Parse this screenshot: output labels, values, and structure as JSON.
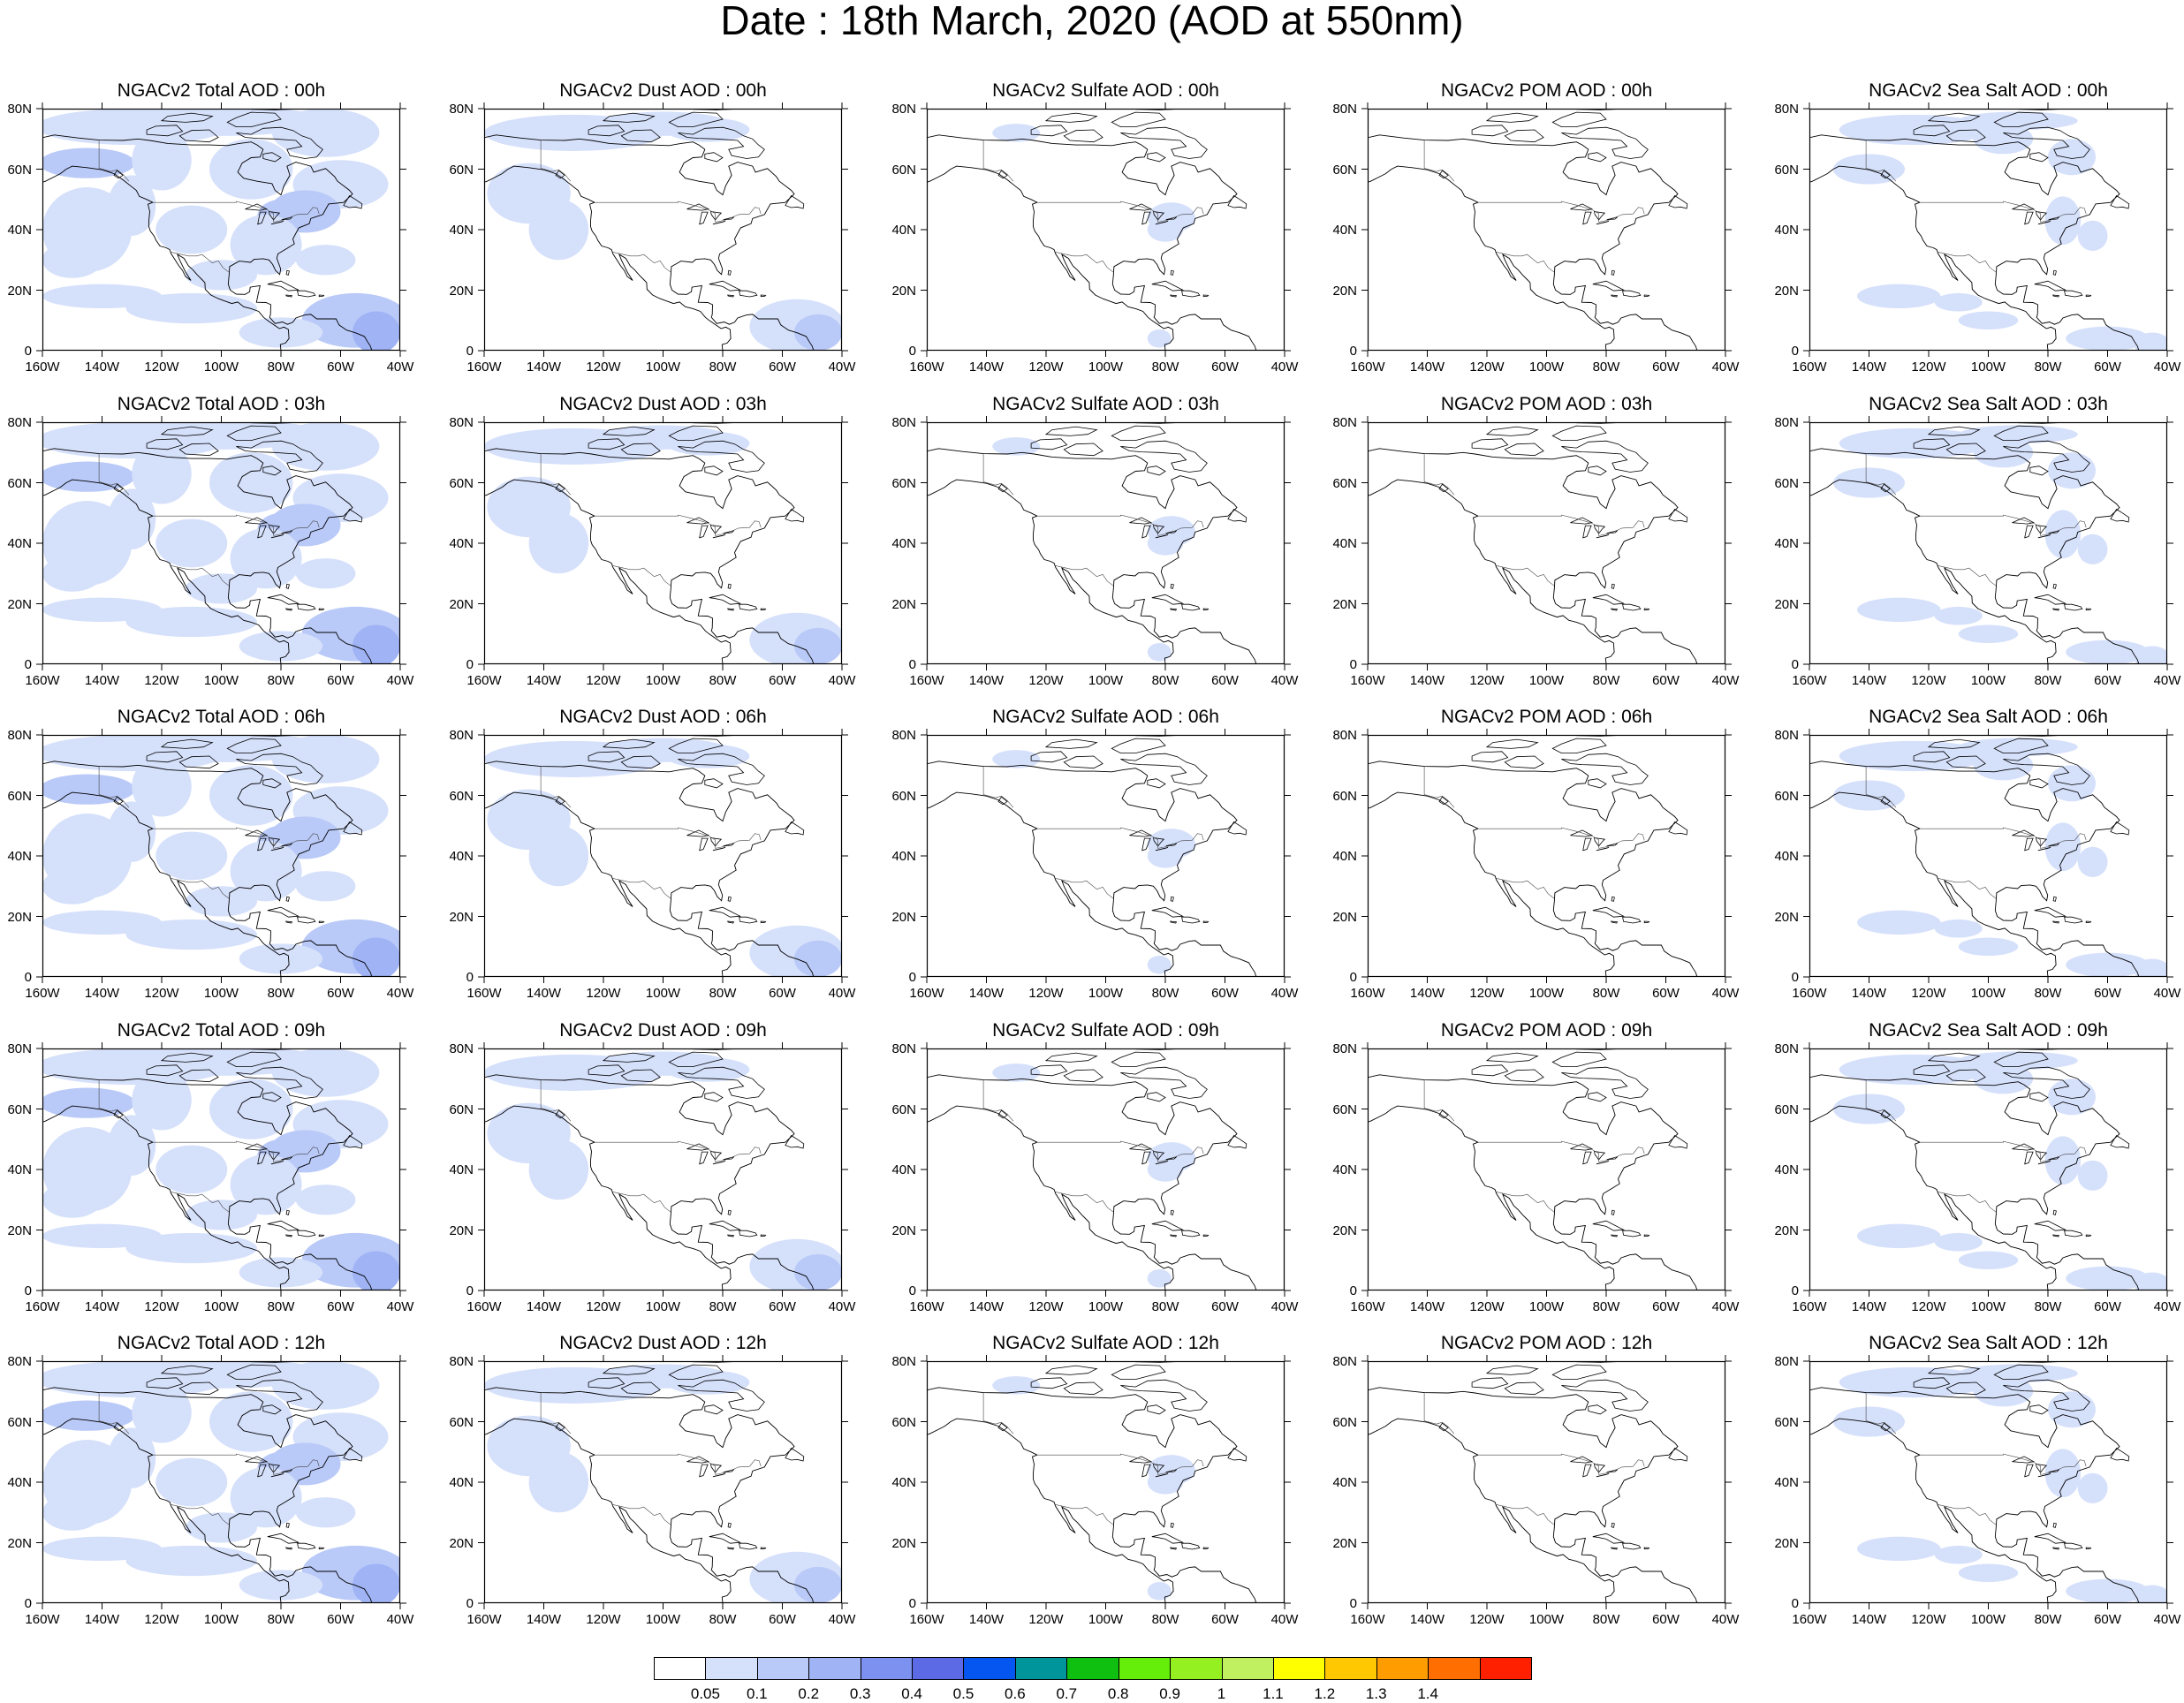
{
  "title": "Date : 18th March, 2020 (AOD at 550nm)",
  "lat_labels": [
    "80N",
    "60N",
    "40N",
    "20N",
    "0"
  ],
  "lon_labels": [
    "160W",
    "140W",
    "120W",
    "100W",
    "80W",
    "60W",
    "40W"
  ],
  "panels": [
    [
      {
        "title": "NGACv2 Total AOD : 00h",
        "species": "total",
        "hour": "00h"
      },
      {
        "title": "NGACv2 Dust AOD : 00h",
        "species": "dust",
        "hour": "00h"
      },
      {
        "title": "NGACv2 Sulfate AOD : 00h",
        "species": "sulfate",
        "hour": "00h"
      },
      {
        "title": "NGACv2 POM AOD : 00h",
        "species": "pom",
        "hour": "00h"
      },
      {
        "title": "NGACv2 Sea Salt AOD : 00h",
        "species": "seasalt",
        "hour": "00h"
      }
    ],
    [
      {
        "title": "NGACv2 Total AOD : 03h",
        "species": "total",
        "hour": "03h"
      },
      {
        "title": "NGACv2 Dust AOD : 03h",
        "species": "dust",
        "hour": "03h"
      },
      {
        "title": "NGACv2 Sulfate AOD : 03h",
        "species": "sulfate",
        "hour": "03h"
      },
      {
        "title": "NGACv2 POM AOD : 03h",
        "species": "pom",
        "hour": "03h"
      },
      {
        "title": "NGACv2 Sea Salt AOD : 03h",
        "species": "seasalt",
        "hour": "03h"
      }
    ],
    [
      {
        "title": "NGACv2 Total AOD : 06h",
        "species": "total",
        "hour": "06h"
      },
      {
        "title": "NGACv2 Dust AOD : 06h",
        "species": "dust",
        "hour": "06h"
      },
      {
        "title": "NGACv2 Sulfate AOD : 06h",
        "species": "sulfate",
        "hour": "06h"
      },
      {
        "title": "NGACv2 POM AOD : 06h",
        "species": "pom",
        "hour": "06h"
      },
      {
        "title": "NGACv2 Sea Salt AOD : 06h",
        "species": "seasalt",
        "hour": "06h"
      }
    ],
    [
      {
        "title": "NGACv2 Total AOD : 09h",
        "species": "total",
        "hour": "09h"
      },
      {
        "title": "NGACv2 Dust AOD : 09h",
        "species": "dust",
        "hour": "09h"
      },
      {
        "title": "NGACv2 Sulfate AOD : 09h",
        "species": "sulfate",
        "hour": "09h"
      },
      {
        "title": "NGACv2 POM AOD : 09h",
        "species": "pom",
        "hour": "09h"
      },
      {
        "title": "NGACv2 Sea Salt  AOD : 09h",
        "species": "seasalt",
        "hour": "09h"
      }
    ],
    [
      {
        "title": "NGACv2 Total AOD  : 12h",
        "species": "total",
        "hour": "12h"
      },
      {
        "title": "NGACv2 Dust AOD : 12h",
        "species": "dust",
        "hour": "12h"
      },
      {
        "title": "NGACv2 Sulfate AOD : 12h",
        "species": "sulfate",
        "hour": "12h"
      },
      {
        "title": "NGACv2 POM  AOD : 12h",
        "species": "pom",
        "hour": "12h"
      },
      {
        "title": "NGACv2 Sea Salt  AOD : 12h",
        "species": "seasalt",
        "hour": "12h"
      }
    ]
  ],
  "legend": {
    "labels": [
      "0.05",
      "0.1",
      "0.2",
      "0.3",
      "0.4",
      "0.5",
      "0.6",
      "0.7",
      "0.8",
      "0.9",
      "1",
      "1.1",
      "1.2",
      "1.3",
      "1.4"
    ],
    "colors": [
      "#ffffff",
      "#d5e0fb",
      "#b9c9f8",
      "#9fb3f5",
      "#7c91f0",
      "#5c6ae6",
      "#0555f0",
      "#00959a",
      "#10c010",
      "#64ee0a",
      "#94f020",
      "#c0f060",
      "#ffff00",
      "#ffc800",
      "#ff9c00",
      "#ff6e00",
      "#ff2000"
    ]
  },
  "colors": {
    "aod_light": "#d5e0fb",
    "aod_med": "#b9c9f8",
    "aod_high": "#9fb3f5",
    "coastline": "#000000"
  }
}
